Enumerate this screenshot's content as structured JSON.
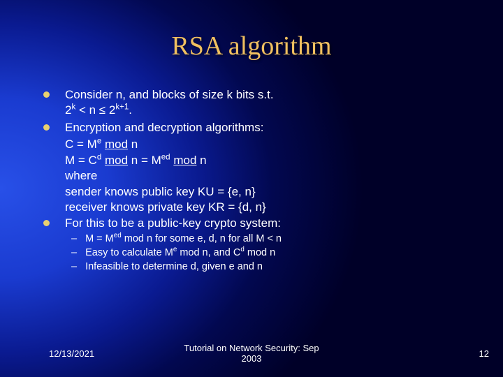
{
  "title": "RSA algorithm",
  "bullets": {
    "b1_line1": "Consider n, and blocks of size k bits s.t.",
    "b1_line2_pre": "2",
    "b1_line2_exp1": "k",
    "b1_line2_mid": " < n ≤ 2",
    "b1_line2_exp2": "k+1",
    "b1_line2_end": ".",
    "b2_line1": "Encryption and decryption algorithms:",
    "b2_line2_a": " C = M",
    "b2_line2_e": "e",
    "b2_line2_b": " ",
    "b2_line2_mod": "mod",
    "b2_line2_c": " n",
    "b2_line3_a": " M = C",
    "b2_line3_d": "d",
    "b2_line3_b": " ",
    "b2_line3_mod1": "mod",
    "b2_line3_c": " n = M",
    "b2_line3_ed": "ed",
    "b2_line3_d2": " ",
    "b2_line3_mod2": "mod",
    "b2_line3_e2": " n",
    "b2_where": "where",
    "b2_sender": "sender knows public key KU = {e, n}",
    "b2_receiver": "receiver knows private key KR = {d, n}",
    "b3_line1": "For this to be a public-key crypto system:"
  },
  "subs": {
    "s1_a": "M = M",
    "s1_ed": "ed",
    "s1_b": " mod n for some e, d, n for all M < n",
    "s2_a": "Easy to calculate M",
    "s2_e": "e",
    "s2_b": " mod n, and C",
    "s2_d": "d",
    "s2_c": " mod n",
    "s3": "Infeasible to determine d, given e and n"
  },
  "footer": {
    "date": "12/13/2021",
    "center1": "Tutorial on Network Security: Sep",
    "center2": "2003",
    "page": "12"
  },
  "colors": {
    "title": "#f0c060",
    "bullet": "#e8d070",
    "text": "#ffffff"
  }
}
